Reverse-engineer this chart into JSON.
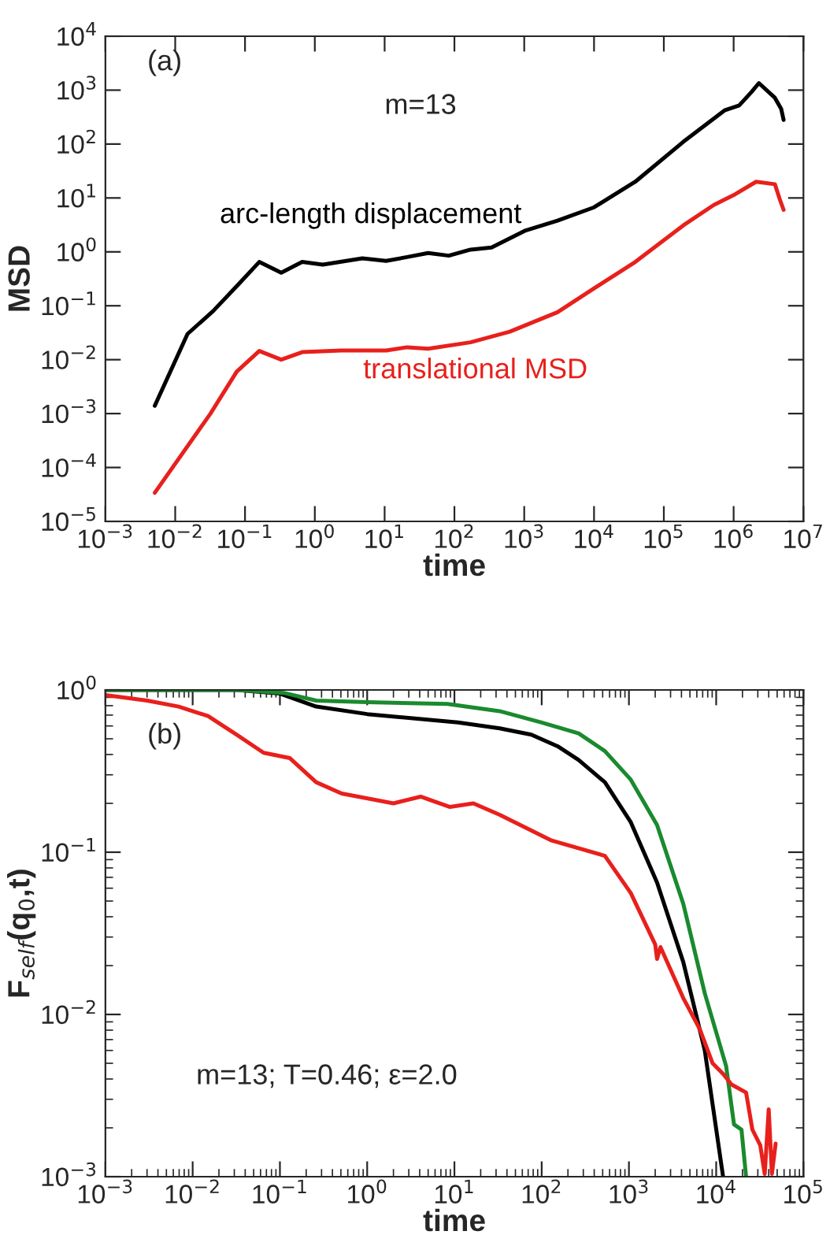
{
  "chart_data": [
    {
      "type": "line",
      "xlabel": "time",
      "ylabel": "MSD",
      "log": "xy",
      "grid": false,
      "legend": false,
      "xlim": [
        0.001,
        10000000
      ],
      "ylim": [
        1e-05,
        10000
      ],
      "xticks": [
        {
          "value": 0.001,
          "label": "10$^{−3}$"
        },
        {
          "value": 0.01,
          "label": "10$^{−2}$"
        },
        {
          "value": 0.1,
          "label": "10$^{−1}$"
        },
        {
          "value": 1,
          "label": "10$^{0}$"
        },
        {
          "value": 10,
          "label": "10$^{1}$"
        },
        {
          "value": 100,
          "label": "10$^{2}$"
        },
        {
          "value": 1000,
          "label": "10$^{3}$"
        },
        {
          "value": 10000,
          "label": "10$^{4}$"
        },
        {
          "value": 100000,
          "label": "10$^{5}$"
        },
        {
          "value": 1000000,
          "label": "10$^{6}$"
        },
        {
          "value": 10000000,
          "label": "10$^{7}$"
        }
      ],
      "yticks": [
        {
          "value": 1e-05,
          "label": "10$^{−5}$"
        },
        {
          "value": 0.0001,
          "label": "10$^{−4}$"
        },
        {
          "value": 0.001,
          "label": "10$^{−3}$"
        },
        {
          "value": 0.01,
          "label": "10$^{−2}$"
        },
        {
          "value": 0.1,
          "label": "10$^{−1}$"
        },
        {
          "value": 1,
          "label": "10$^{0}$"
        },
        {
          "value": 10,
          "label": "10$^{1}$"
        },
        {
          "value": 100,
          "label": "10$^{2}$"
        },
        {
          "value": 1000,
          "label": "10$^{3}$"
        },
        {
          "value": 10000,
          "label": "10$^{4}$"
        }
      ],
      "annotations": [
        "(a)",
        "m=13"
      ],
      "series": [
        {
          "name": "arc-length displacement",
          "color": "#000000",
          "x": [
            0.0051,
            0.015,
            0.035,
            0.083,
            0.16,
            0.33,
            0.66,
            1.3,
            4.8,
            10.5,
            21,
            42,
            83,
            170,
            340,
            1050,
            3000,
            10000,
            39000,
            190000,
            740000,
            1200000,
            1800000,
            2300000,
            3900000,
            4800000,
            5200000
          ],
          "values": [
            0.0014,
            0.03,
            0.08,
            0.26,
            0.65,
            0.41,
            0.65,
            0.58,
            0.76,
            0.68,
            0.8,
            0.95,
            0.85,
            1.1,
            1.2,
            2.5,
            3.8,
            6.7,
            20,
            110,
            420,
            520,
            920,
            1350,
            720,
            450,
            280
          ]
        },
        {
          "name": "translational MSD",
          "color": "#e8201c",
          "x": [
            0.0051,
            0.032,
            0.076,
            0.16,
            0.33,
            0.66,
            2.4,
            10.5,
            21,
            42,
            170,
            620,
            3000,
            10000,
            39000,
            190000,
            520000,
            1050000,
            2100000,
            3900000,
            4600000,
            5200000
          ],
          "values": [
            3.4e-05,
            0.001,
            0.006,
            0.0145,
            0.01,
            0.0138,
            0.0148,
            0.0148,
            0.017,
            0.016,
            0.021,
            0.033,
            0.076,
            0.21,
            0.65,
            3.1,
            7.4,
            11.7,
            20,
            18,
            9.3,
            6
          ]
        }
      ]
    },
    {
      "type": "line",
      "xlabel": "time",
      "ylabel": "F$_{self}$(q$_{0}$,t)",
      "log": "xy",
      "grid": false,
      "legend": false,
      "xlim": [
        0.001,
        100000
      ],
      "ylim": [
        0.001,
        1
      ],
      "xticks": [
        {
          "value": 0.001,
          "label": "10$^{−3}$"
        },
        {
          "value": 0.01,
          "label": "10$^{−2}$"
        },
        {
          "value": 0.1,
          "label": "10$^{−1}$"
        },
        {
          "value": 1,
          "label": "10$^{0}$"
        },
        {
          "value": 10,
          "label": "10$^{1}$"
        },
        {
          "value": 100,
          "label": "10$^{2}$"
        },
        {
          "value": 1000,
          "label": "10$^{3}$"
        },
        {
          "value": 10000,
          "label": "10$^{4}$"
        },
        {
          "value": 100000,
          "label": "10$^{5}$"
        }
      ],
      "yticks": [
        {
          "value": 0.001,
          "label": "10$^{−3}$"
        },
        {
          "value": 0.01,
          "label": "10$^{−2}$"
        },
        {
          "value": 0.1,
          "label": "10$^{−1}$"
        },
        {
          "value": 1,
          "label": "10$^{0}$"
        }
      ],
      "annotations": [
        "(b)",
        "m=13; T=0.46; ε=2.0"
      ],
      "series": [
        {
          "color": "#000000",
          "x": [
            0.001,
            0.032,
            0.1,
            0.26,
            1.0,
            11,
            33,
            76,
            152,
            265,
            530,
            1050,
            2100,
            4200,
            7400,
            12000
          ],
          "values": [
            1.0,
            1.0,
            0.95,
            0.79,
            0.71,
            0.63,
            0.58,
            0.53,
            0.45,
            0.37,
            0.27,
            0.153,
            0.065,
            0.021,
            0.006,
            0.001
          ]
        },
        {
          "color": "#1a8a2e",
          "x": [
            0.001,
            0.032,
            0.11,
            0.26,
            1.0,
            8.3,
            33,
            100,
            265,
            530,
            1050,
            2100,
            4200,
            7400,
            13000,
            16000,
            19500,
            22000
          ],
          "values": [
            1.0,
            1.0,
            0.96,
            0.86,
            0.84,
            0.82,
            0.74,
            0.63,
            0.54,
            0.42,
            0.28,
            0.147,
            0.048,
            0.0135,
            0.0048,
            0.0021,
            0.00195,
            0.001
          ]
        },
        {
          "color": "#e8201c",
          "x": [
            0.001,
            0.003,
            0.0069,
            0.015,
            0.032,
            0.065,
            0.13,
            0.26,
            0.51,
            2.0,
            4.1,
            8.9,
            16.5,
            33,
            130,
            530,
            1050,
            2000,
            2100,
            2300,
            4200,
            6500,
            9100,
            12000,
            15000,
            22000,
            26000,
            32000,
            36000,
            40000,
            43500,
            48000
          ],
          "values": [
            0.93,
            0.86,
            0.79,
            0.69,
            0.53,
            0.41,
            0.38,
            0.27,
            0.23,
            0.2,
            0.22,
            0.19,
            0.2,
            0.17,
            0.118,
            0.095,
            0.056,
            0.027,
            0.022,
            0.026,
            0.0126,
            0.0081,
            0.005,
            0.0043,
            0.0037,
            0.0033,
            0.00195,
            0.00156,
            0.00104,
            0.0026,
            0.00104,
            0.0016
          ]
        }
      ]
    }
  ]
}
